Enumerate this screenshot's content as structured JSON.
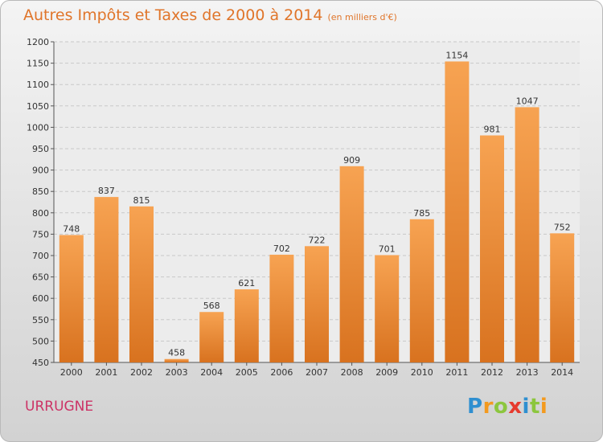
{
  "header": {
    "title": "Autres Impôts et Taxes de 2000 à 2014",
    "unit": "(en milliers d'€)"
  },
  "footer": {
    "commune": "URRUGNE",
    "brand": [
      "P",
      "r",
      "o",
      "x",
      "i",
      "t",
      "i"
    ]
  },
  "colors": {
    "bar_top": "#f7a352",
    "bar_bottom": "#d8721f",
    "title": "#e0752a",
    "commune": "#cc3366",
    "brand": [
      "#2f8fd0",
      "#f39a1f",
      "#8cc63e",
      "#e63a2e",
      "#2f8fd0",
      "#8cc63e",
      "#f39a1f"
    ]
  },
  "chart_data": {
    "type": "bar",
    "title": "Autres Impôts et Taxes de 2000 à 2014",
    "subtitle": "(en milliers d'€)",
    "categories": [
      "2000",
      "2001",
      "2002",
      "2003",
      "2004",
      "2005",
      "2006",
      "2007",
      "2008",
      "2009",
      "2010",
      "2011",
      "2012",
      "2013",
      "2014"
    ],
    "values": [
      748,
      837,
      815,
      458,
      568,
      621,
      702,
      722,
      909,
      701,
      785,
      1154,
      981,
      1047,
      752
    ],
    "ylim": [
      450,
      1200
    ],
    "yticks": [
      450,
      500,
      550,
      600,
      650,
      700,
      750,
      800,
      850,
      900,
      950,
      1000,
      1050,
      1100,
      1150,
      1200
    ],
    "grid": true,
    "xlabel": "",
    "ylabel": ""
  }
}
